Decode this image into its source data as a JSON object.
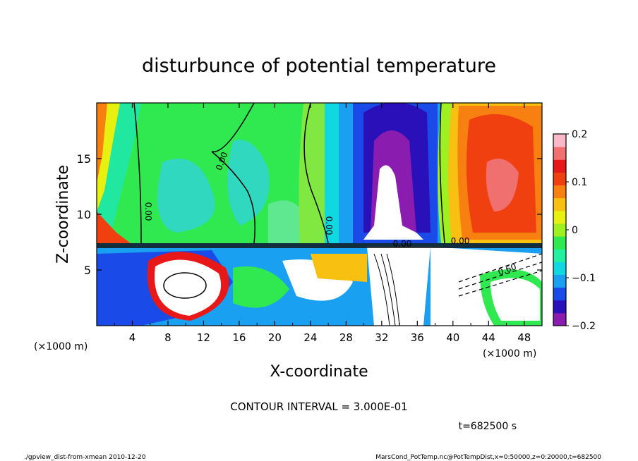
{
  "chart_data": {
    "type": "heatmap",
    "title": "disturbunce of potential temperature",
    "xlabel": "X-coordinate",
    "ylabel": "Z-coordinate",
    "x_unit": "(×1000 m)",
    "y_unit": "(×1000 m)",
    "xlim": [
      0,
      50
    ],
    "ylim": [
      0,
      20
    ],
    "x_ticks": [
      4,
      8,
      12,
      16,
      20,
      24,
      28,
      32,
      36,
      40,
      44,
      48
    ],
    "y_ticks": [
      5,
      10,
      15
    ],
    "colorbar": {
      "range": [
        -0.2,
        0.2
      ],
      "ticks": [
        "0.2",
        "0.1",
        "0",
        "−0.1",
        "−0.2"
      ],
      "tick_values": [
        0.2,
        0.1,
        0,
        -0.1,
        -0.2
      ],
      "colors": [
        "#8a1cb0",
        "#2a10b8",
        "#1a4ae8",
        "#1aa0f0",
        "#10d8e0",
        "#20f0a0",
        "#30e850",
        "#9ef020",
        "#e8f010",
        "#f8c010",
        "#f88010",
        "#f04010",
        "#e81818",
        "#f07070",
        "#f8b8c8"
      ]
    },
    "contour_labels": [
      "0.00",
      "0.00",
      "0.00",
      "0.00",
      "0.00",
      "0.60"
    ],
    "contour_interval_text": "CONTOUR INTERVAL = 3.000E-01",
    "time_text": "t=682500 s"
  },
  "footer": {
    "left": "./gpview_dist-from-xmean  2010-12-20",
    "right": "MarsCond_PotTemp.nc@PotTempDist,x=0:50000,z=0:20000,t=682500"
  }
}
